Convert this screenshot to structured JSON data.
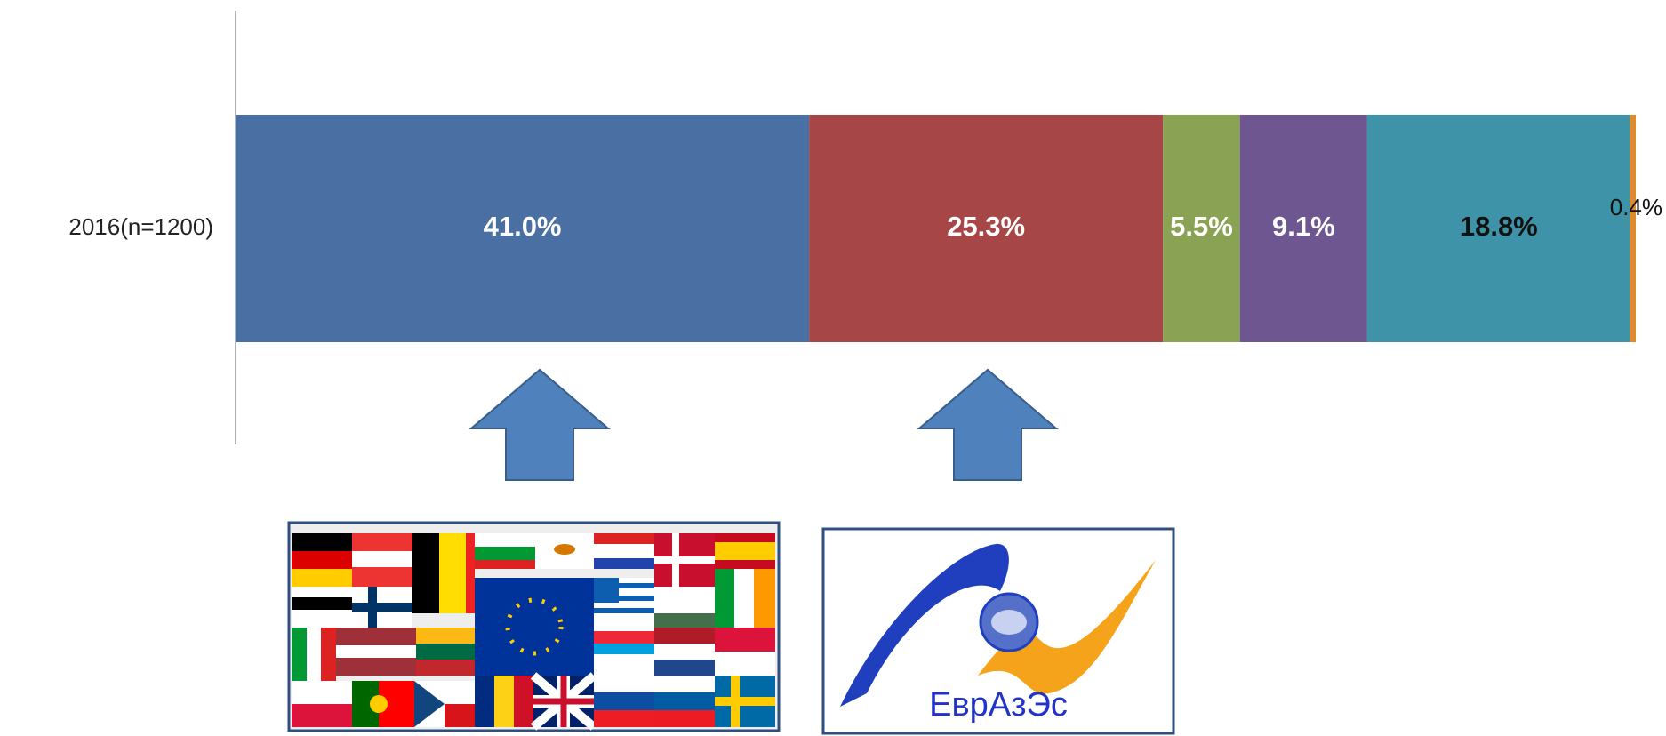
{
  "chart_data": {
    "type": "stacked_bar_horizontal",
    "categories": [
      "2016(n=1200)"
    ],
    "series": [
      {
        "color": "#4a70a3",
        "label_color": "#ffffff",
        "values": [
          41.0
        ],
        "value_labels": [
          "41.0%"
        ]
      },
      {
        "color": "#a64646",
        "label_color": "#ffffff",
        "values": [
          25.3
        ],
        "value_labels": [
          "25.3%"
        ]
      },
      {
        "color": "#8aa253",
        "label_color": "#ffffff",
        "values": [
          5.5
        ],
        "value_labels": [
          "5.5%"
        ]
      },
      {
        "color": "#6e5690",
        "label_color": "#ffffff",
        "values": [
          9.1
        ],
        "value_labels": [
          "9.1%"
        ]
      },
      {
        "color": "#3f93a8",
        "label_color": "#111111",
        "values": [
          18.8
        ],
        "value_labels": [
          "18.8%"
        ]
      },
      {
        "color": "#e08a2e",
        "label_color": "#111111",
        "values": [
          0.4
        ],
        "value_labels": [
          "0.4%"
        ]
      }
    ],
    "xlim": [
      0,
      100.1
    ],
    "logo_text": "ЕврАзЭс"
  }
}
